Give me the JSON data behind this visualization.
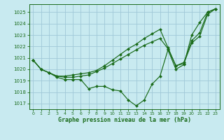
{
  "title": "Graphe pression niveau de la mer (hPa)",
  "background_color": "#c8eaf0",
  "grid_color": "#a0c8d8",
  "line_color": "#1a6b1a",
  "marker_color": "#1a6b1a",
  "xlim": [
    -0.5,
    23.5
  ],
  "ylim": [
    1016.5,
    1025.7
  ],
  "yticks": [
    1017,
    1018,
    1019,
    1020,
    1021,
    1022,
    1023,
    1024,
    1025
  ],
  "xticks": [
    0,
    1,
    2,
    3,
    4,
    5,
    6,
    7,
    8,
    9,
    10,
    11,
    12,
    13,
    14,
    15,
    16,
    17,
    18,
    19,
    20,
    21,
    22,
    23
  ],
  "series": [
    [
      1020.8,
      1020.0,
      1019.7,
      1019.3,
      1019.1,
      1019.1,
      1019.1,
      1018.3,
      1018.5,
      1018.5,
      1018.2,
      1018.1,
      1017.3,
      1016.8,
      1017.3,
      1018.7,
      1019.4,
      1021.7,
      1020.0,
      1020.4,
      1023.0,
      1024.1,
      1025.0,
      1025.3
    ],
    [
      1020.8,
      1020.0,
      1019.7,
      1019.4,
      1019.3,
      1019.3,
      1019.4,
      1019.5,
      1019.8,
      1020.1,
      1020.5,
      1020.9,
      1021.3,
      1021.7,
      1022.1,
      1022.4,
      1022.7,
      1021.8,
      1020.3,
      1020.5,
      1022.3,
      1022.9,
      1024.8,
      1025.3
    ],
    [
      1020.8,
      1020.0,
      1019.7,
      1019.4,
      1019.4,
      1019.5,
      1019.6,
      1019.7,
      1019.9,
      1020.3,
      1020.8,
      1021.3,
      1021.8,
      1022.2,
      1022.7,
      1023.1,
      1023.5,
      1021.9,
      1020.3,
      1020.6,
      1022.5,
      1023.2,
      1025.0,
      1025.3
    ]
  ]
}
